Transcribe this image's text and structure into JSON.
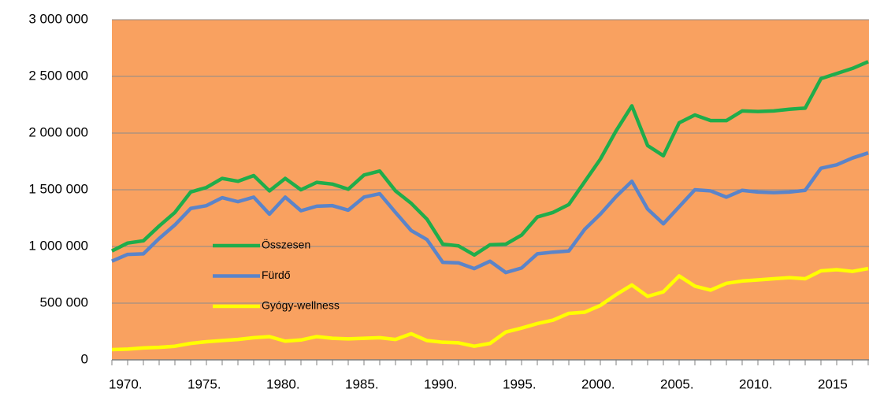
{
  "chart_data": {
    "type": "line",
    "categories": [
      "1970.",
      null,
      null,
      null,
      null,
      "1975.",
      null,
      null,
      null,
      null,
      "1980.",
      null,
      null,
      null,
      null,
      "1985.",
      null,
      null,
      null,
      null,
      "1990.",
      null,
      null,
      null,
      null,
      "1995.",
      null,
      null,
      null,
      null,
      "2000.",
      null,
      null,
      null,
      null,
      "2005.",
      null,
      null,
      null,
      null,
      "2010.",
      null,
      null,
      null,
      null,
      "2015",
      null,
      null,
      null
    ],
    "series": [
      {
        "name": "Összesen",
        "color": "#1fad4b",
        "values": [
          960000,
          1030000,
          1050000,
          1180000,
          1300000,
          1480000,
          1520000,
          1600000,
          1575000,
          1625000,
          1490000,
          1600000,
          1500000,
          1565000,
          1550000,
          1505000,
          1630000,
          1665000,
          1490000,
          1380000,
          1240000,
          1020000,
          1005000,
          925000,
          1015000,
          1020000,
          1100000,
          1260000,
          1300000,
          1370000,
          1570000,
          1770000,
          2020000,
          2240000,
          1890000,
          1800000,
          2090000,
          2160000,
          2110000,
          2110000,
          2195000,
          2190000,
          2195000,
          2210000,
          2220000,
          2480000,
          2525000,
          2570000,
          2630000
        ]
      },
      {
        "name": "Fürdő",
        "color": "#5b84c9",
        "values": [
          870000,
          930000,
          935000,
          1070000,
          1190000,
          1335000,
          1360000,
          1430000,
          1395000,
          1435000,
          1285000,
          1435000,
          1315000,
          1355000,
          1360000,
          1320000,
          1435000,
          1465000,
          1300000,
          1140000,
          1060000,
          860000,
          855000,
          805000,
          870000,
          770000,
          810000,
          935000,
          950000,
          960000,
          1150000,
          1285000,
          1440000,
          1575000,
          1330000,
          1200000,
          1350000,
          1500000,
          1490000,
          1435000,
          1495000,
          1480000,
          1475000,
          1480000,
          1495000,
          1690000,
          1720000,
          1780000,
          1825000
        ]
      },
      {
        "name": "Gyógy-wellness",
        "color": "#ffff00",
        "values": [
          90000,
          95000,
          105000,
          110000,
          120000,
          145000,
          160000,
          170000,
          180000,
          195000,
          205000,
          165000,
          175000,
          205000,
          190000,
          185000,
          190000,
          195000,
          180000,
          230000,
          170000,
          155000,
          150000,
          120000,
          145000,
          245000,
          280000,
          320000,
          350000,
          410000,
          420000,
          480000,
          575000,
          660000,
          560000,
          600000,
          740000,
          650000,
          615000,
          675000,
          695000,
          705000,
          715000,
          725000,
          715000,
          785000,
          795000,
          780000,
          805000
        ]
      }
    ],
    "ylim": [
      0,
      3000000
    ],
    "yticks": [
      0,
      {
        "value": 500000,
        "label": "500 000"
      },
      {
        "value": 1000000,
        "label": "1 000 000"
      },
      {
        "value": 1500000,
        "label": "1 500 000"
      },
      {
        "value": 2000000,
        "label": "2 000 000"
      },
      {
        "value": 2500000,
        "label": "2 500 000"
      },
      {
        "value": 3000000,
        "label": "3 000 000"
      }
    ],
    "grid": true,
    "background": "#f9a160",
    "legend": "left"
  }
}
